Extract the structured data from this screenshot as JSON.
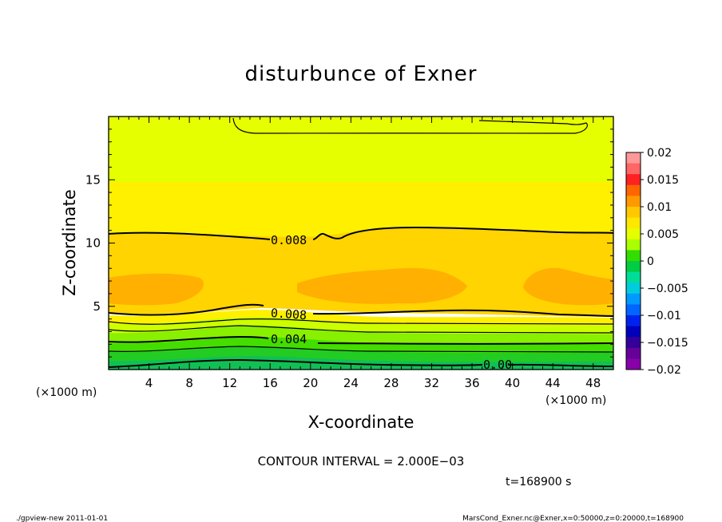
{
  "chart_data": {
    "type": "heatmap",
    "title": "disturbunce of Exner",
    "xlabel": "X-coordinate",
    "ylabel": "Z-coordinate",
    "x_unit": "(×1000 m)",
    "xlim": [
      0,
      50
    ],
    "ylim": [
      0,
      20
    ],
    "x_ticks": [
      "4",
      "8",
      "12",
      "16",
      "20",
      "24",
      "28",
      "32",
      "36",
      "40",
      "44",
      "48"
    ],
    "y_ticks": [
      "5",
      "10",
      "15"
    ],
    "colorbar": {
      "ticks": [
        "0.02",
        "0.015",
        "0.01",
        "0.005",
        "0",
        "−0.005",
        "−0.01",
        "−0.015",
        "−0.02"
      ],
      "range": [
        -0.02,
        0.02
      ],
      "colors": [
        "#FF9999",
        "#FF6666",
        "#FF2222",
        "#FF6600",
        "#FF9900",
        "#FFC800",
        "#FFE800",
        "#E6FF00",
        "#AAFF00",
        "#33DD00",
        "#00CC44",
        "#00DD99",
        "#00CCDD",
        "#0099FF",
        "#0066FF",
        "#0022EE",
        "#0000BB",
        "#330099",
        "#660099",
        "#8800AA"
      ]
    },
    "contour_labels": [
      {
        "text": "0.008",
        "x": 20.8,
        "z": 10.2
      },
      {
        "text": "0.008",
        "x": 20.2,
        "z": 4.6
      },
      {
        "text": "0.004",
        "x": 20.2,
        "z": 2.3
      },
      {
        "text": "0.00",
        "x": 37.4,
        "z": 0.3
      }
    ],
    "contour_interval": "CONTOUR INTERVAL = 2.000E−03",
    "time": "t=168900 s",
    "footer_left": "./gpview-new  2011-01-01",
    "footer_right": "MarsCond_Exner.nc@Exner,x=0:50000,z=0:20000,t=168900"
  }
}
